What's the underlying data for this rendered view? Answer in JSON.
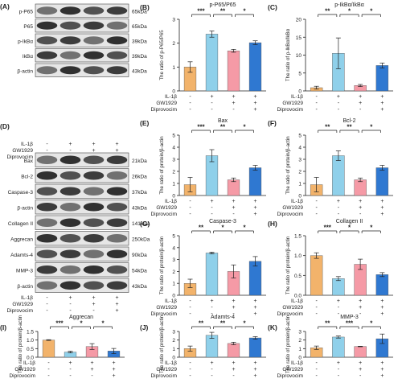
{
  "figure": {
    "condition_labels": [
      "IL-1β",
      "GW1929",
      "Diprovocim"
    ],
    "condition_rows": [
      [
        "-",
        "+",
        "+",
        "+"
      ],
      [
        "-",
        "-",
        "+",
        "+"
      ],
      [
        "-",
        "-",
        "-",
        "+"
      ]
    ],
    "bar_colors": [
      "#F2B36B",
      "#8FD0EA",
      "#F59AA6",
      "#2F78D1"
    ]
  },
  "blots": [
    {
      "panel": "(A)",
      "rows": [
        {
          "label": "p-P65",
          "size": "65kDa"
        },
        {
          "label": "P65",
          "size": "65kDa"
        },
        {
          "label": "p-IkBα",
          "size": "39kDa"
        },
        {
          "label": "IkBα",
          "size": "39kDa"
        },
        {
          "label": "β-actin",
          "size": "43kDa"
        }
      ]
    },
    {
      "panel": "(D)",
      "rows": [
        {
          "label": "Bax",
          "size": "21kDa"
        },
        {
          "label": "Bcl-2",
          "size": "26kDa"
        },
        {
          "label": "Caspase-3",
          "size": "37kDa"
        },
        {
          "label": "β-actin",
          "size": "43kDa"
        },
        {
          "label": "Collagen II",
          "size": "141kDa"
        },
        {
          "label": "Aggrecan",
          "size": "250kDa"
        },
        {
          "label": "Adamts-4",
          "size": "90kDa"
        },
        {
          "label": "MMP-3",
          "size": "54kDa"
        },
        {
          "label": "β-actin",
          "size": "43kDa"
        }
      ]
    }
  ],
  "chart_data": [
    {
      "type": "bar",
      "panel": "(B)",
      "title": "p-P65/P65",
      "ylabel": "The ratio of  p-P65/P65",
      "ylim": [
        0,
        3
      ],
      "yticks": [
        "0",
        "1",
        "2",
        "3"
      ],
      "values": [
        1.0,
        2.38,
        1.68,
        2.02
      ],
      "errors": [
        0.22,
        0.13,
        0.06,
        0.08
      ],
      "significance": [
        "***",
        "**",
        "*"
      ]
    },
    {
      "type": "bar",
      "panel": "(C)",
      "title": "p-IkBα/IkBα",
      "ylabel": "The ratio of  p-IkBα/IkBα",
      "ylim": [
        0,
        20
      ],
      "yticks": [
        "0",
        "5",
        "10",
        "15",
        "20"
      ],
      "values": [
        0.9,
        10.5,
        1.5,
        7.1
      ],
      "errors": [
        0.4,
        4.3,
        0.3,
        0.7
      ],
      "significance": [
        "**",
        "*",
        "*"
      ]
    },
    {
      "type": "bar",
      "panel": "(E)",
      "title": "Bax",
      "ylabel": "The ratio of protein/β-actin",
      "ylim": [
        0,
        5
      ],
      "yticks": [
        "0",
        "1",
        "2",
        "3",
        "4",
        "5"
      ],
      "values": [
        0.9,
        3.3,
        1.3,
        2.3
      ],
      "errors": [
        0.6,
        0.5,
        0.15,
        0.2
      ],
      "significance": [
        "***",
        "**",
        "*"
      ]
    },
    {
      "type": "bar",
      "panel": "(F)",
      "title": "Bcl-2",
      "ylabel": "The ratio of protein/β-actin",
      "ylim": [
        0,
        5
      ],
      "yticks": [
        "0",
        "1",
        "2",
        "3",
        "4",
        "5"
      ],
      "values": [
        0.9,
        3.3,
        1.3,
        2.3
      ],
      "errors": [
        0.6,
        0.4,
        0.15,
        0.2
      ],
      "significance": [
        "**",
        "**",
        "*"
      ]
    },
    {
      "type": "bar",
      "panel": "(G)",
      "title": "Caspase-3",
      "ylabel": "The ratio of protein/β-actin",
      "ylim": [
        0,
        5
      ],
      "yticks": [
        "0",
        "1",
        "2",
        "3",
        "4",
        "5"
      ],
      "values": [
        1.0,
        3.55,
        2.0,
        2.85
      ],
      "errors": [
        0.35,
        0.07,
        0.55,
        0.4
      ],
      "significance": [
        "**",
        "*",
        "*"
      ]
    },
    {
      "type": "bar",
      "panel": "(H)",
      "title": "Collagen II",
      "ylabel": "The ratio of protein/β-actin",
      "ylim": [
        0,
        1.5
      ],
      "yticks": [
        "0.0",
        "0.5",
        "1.0",
        "1.5"
      ],
      "values": [
        1.0,
        0.42,
        0.78,
        0.52
      ],
      "errors": [
        0.07,
        0.05,
        0.13,
        0.05
      ],
      "significance": [
        "***",
        "*",
        "*"
      ]
    },
    {
      "type": "bar",
      "panel": "(I)",
      "title": "Aggrecan",
      "ylabel": "The ratio of protein/β-actin",
      "ylim": [
        0,
        1.5
      ],
      "yticks": [
        "0.0",
        "0.5",
        "1.0",
        "1.5"
      ],
      "values": [
        1.0,
        0.3,
        0.62,
        0.36
      ],
      "errors": [
        0.02,
        0.05,
        0.17,
        0.15
      ],
      "significance": [
        "***",
        "*",
        "*"
      ]
    },
    {
      "type": "bar",
      "panel": "(J)",
      "title": "Adamts-4",
      "ylabel": "The ratio of protein/β-actin",
      "ylim": [
        0,
        3
      ],
      "yticks": [
        "0",
        "1",
        "2",
        "3"
      ],
      "values": [
        1.0,
        2.55,
        1.6,
        2.25
      ],
      "errors": [
        0.3,
        0.35,
        0.15,
        0.15
      ],
      "significance": [
        "**",
        "**",
        "*"
      ]
    },
    {
      "type": "bar",
      "panel": "(K)",
      "title": "MMP-3",
      "ylabel": "The ratio of protein/β-actin",
      "ylim": [
        0,
        3
      ],
      "yticks": [
        "0",
        "1",
        "2",
        "3"
      ],
      "values": [
        1.1,
        2.35,
        1.25,
        2.15
      ],
      "errors": [
        0.2,
        0.12,
        0.03,
        0.55
      ],
      "significance": [
        "**",
        "***",
        "*"
      ]
    }
  ]
}
